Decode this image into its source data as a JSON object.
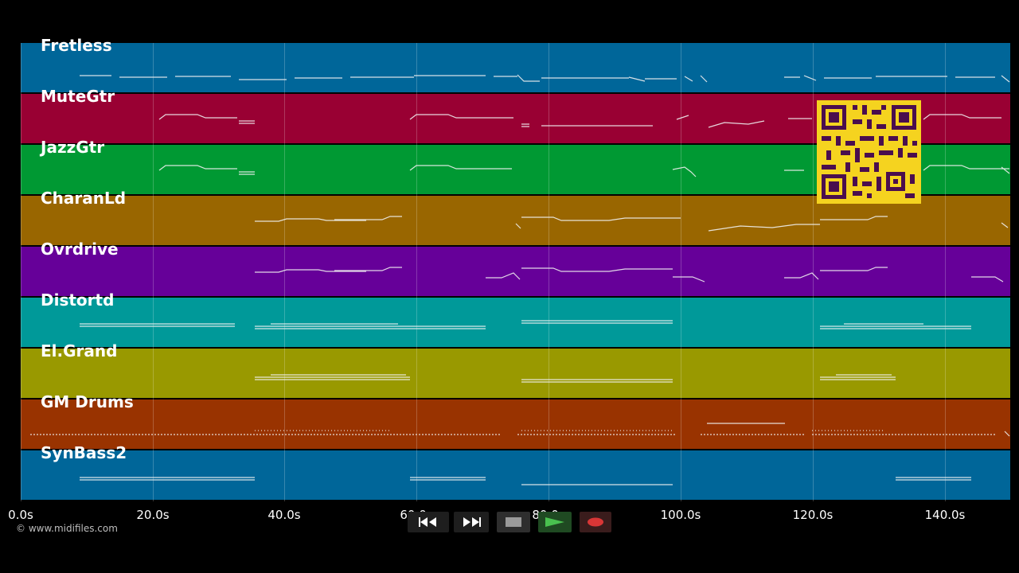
{
  "tracks": [
    {
      "name": "Fretless",
      "color": "#006699"
    },
    {
      "name": "MuteGtr",
      "color": "#990033"
    },
    {
      "name": "JazzGtr",
      "color": "#009933"
    },
    {
      "name": "CharanLd",
      "color": "#996600"
    },
    {
      "name": "Ovrdrive",
      "color": "#660099"
    },
    {
      "name": "Distortd",
      "color": "#009999"
    },
    {
      "name": "El.Grand",
      "color": "#999900"
    },
    {
      "name": "GM Drums",
      "color": "#993300"
    },
    {
      "name": "SynBass2",
      "color": "#006699"
    }
  ],
  "timeline": {
    "ticks": [
      "0.0s",
      "20.0s",
      "40.0s",
      "60.0s",
      "80.0s",
      "100.0s",
      "120.0s",
      "140.0s"
    ]
  },
  "copyright": "© www.midifiles.com",
  "transport": {
    "rewind_icon": "rewind-icon",
    "fast_forward_icon": "fast-forward-icon",
    "stop_icon": "stop-icon",
    "play_icon": "play-icon",
    "record_icon": "record-icon"
  },
  "qr_code": {
    "color": "#f5d31f",
    "dark": "#4a0e4e"
  }
}
